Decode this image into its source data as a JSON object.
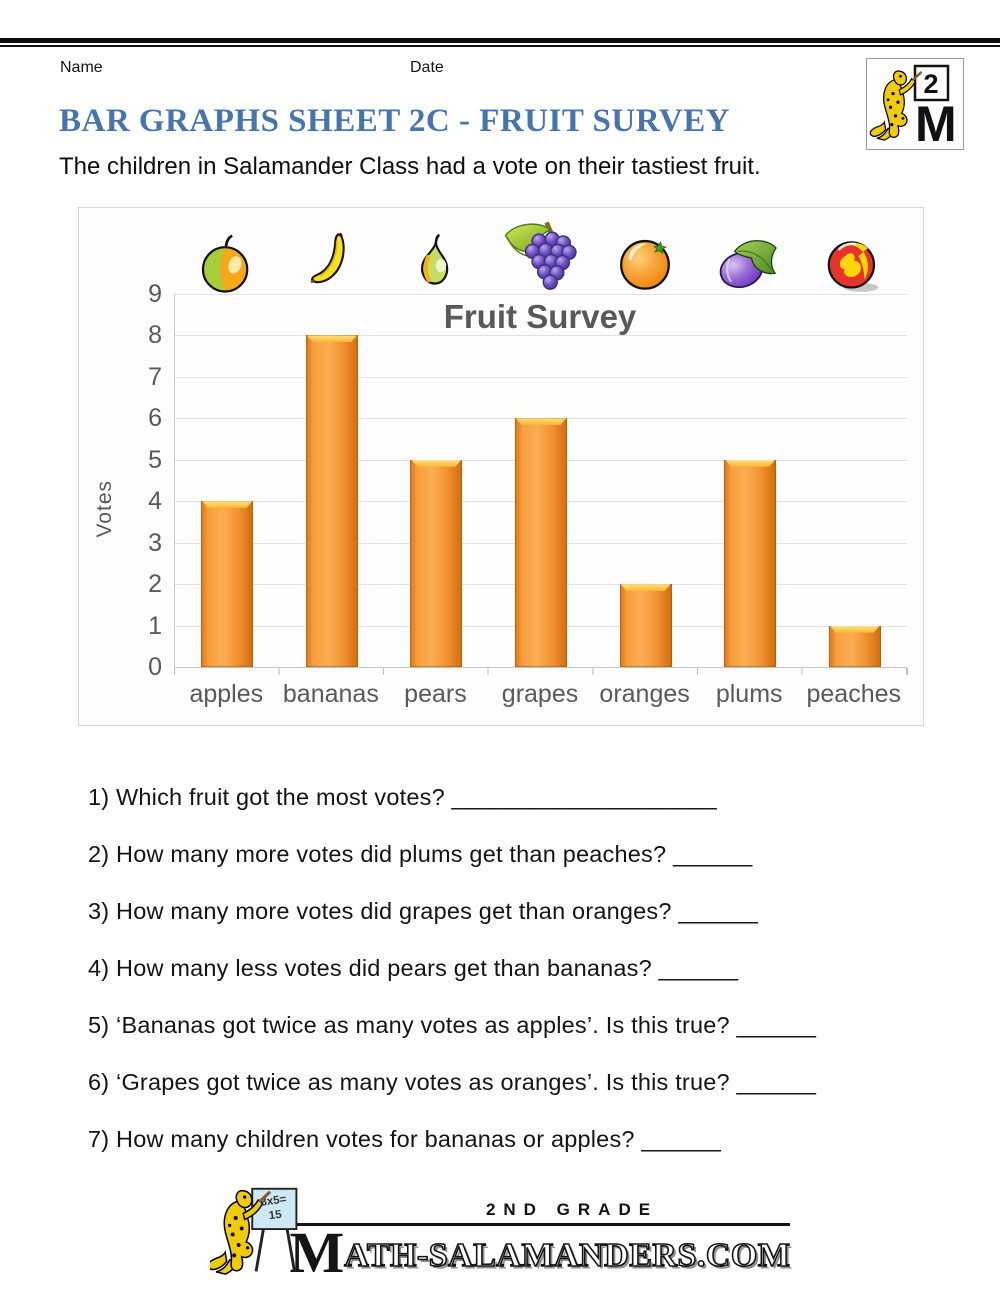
{
  "page": {
    "name_label": "Name",
    "date_label": "Date",
    "title": "BAR GRAPHS SHEET 2C - FRUIT SURVEY",
    "subtitle": "The children in Salamander Class had a vote on their tastiest fruit."
  },
  "corner_logo": {
    "grade_number": "2",
    "letter": "M"
  },
  "chart_data": {
    "type": "bar",
    "title": "Fruit Survey",
    "ylabel": "Votes",
    "categories": [
      "apples",
      "bananas",
      "pears",
      "grapes",
      "oranges",
      "plums",
      "peaches"
    ],
    "values": [
      4,
      8,
      5,
      6,
      2,
      5,
      1
    ],
    "ylim": [
      0,
      9
    ],
    "ytick_step": 1,
    "grid": true,
    "legend": "none",
    "bar_color": "#F79A33",
    "fruit_icons": [
      "apple-icon",
      "banana-icon",
      "pear-icon",
      "grapes-icon",
      "orange-icon",
      "plum-icon",
      "peach-icon"
    ]
  },
  "questions": [
    "1) Which fruit got the most votes? ____________________",
    "2) How many more votes did plums get than peaches? ______",
    "3) How many more votes did grapes get than oranges? ______",
    "4) How many less votes did pears get than bananas? ______",
    "5) ‘Bananas got twice as many votes as apples’. Is this true? ______",
    "6) ‘Grapes got twice as many votes as oranges’. Is this true? ______",
    "7) How many children votes for bananas or apples? ______"
  ],
  "footer": {
    "grade_text": "2ND GRADE",
    "site_initial": "M",
    "site_rest": "ATH-SALAMANDERS.COM",
    "board_line1": "3x5=",
    "board_line2": "15"
  }
}
